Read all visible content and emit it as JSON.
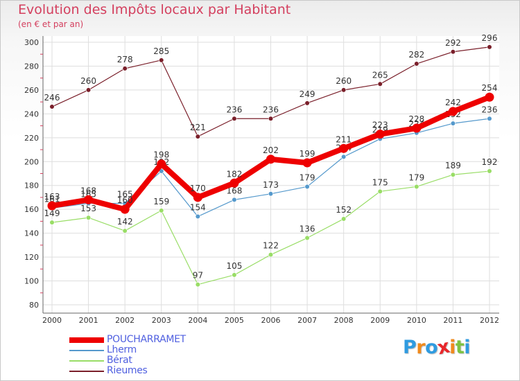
{
  "chart_data": {
    "type": "line",
    "title": "Evolution des Impôts locaux par Habitant",
    "subtitle": "(en € et par an)",
    "categories": [
      "2000",
      "2001",
      "2002",
      "2003",
      "2004",
      "2005",
      "2006",
      "2007",
      "2008",
      "2009",
      "2010",
      "2011",
      "2012"
    ],
    "ylim": [
      80,
      300
    ],
    "yticks": [
      80,
      100,
      120,
      140,
      160,
      180,
      200,
      220,
      240,
      260,
      280,
      300
    ],
    "grid": true,
    "series": [
      {
        "name": "Rieumes",
        "color": "#7a1f2a",
        "values": [
          246,
          260,
          278,
          285,
          221,
          236,
          236,
          249,
          260,
          265,
          282,
          292,
          296
        ]
      },
      {
        "name": "Bérat",
        "color": "#99dd66",
        "values": [
          149,
          153,
          142,
          159,
          97,
          105,
          122,
          136,
          152,
          175,
          179,
          189,
          192
        ]
      },
      {
        "name": "Lherm",
        "color": "#5599cc",
        "values": [
          161,
          165,
          165,
          192,
          154,
          168,
          173,
          179,
          204,
          219,
          224,
          232,
          236
        ]
      },
      {
        "name": "POUCHARRAMET",
        "color": "#ee0000",
        "values": [
          163,
          168,
          160,
          198,
          170,
          182,
          202,
          199,
          211,
          223,
          228,
          242,
          254
        ]
      }
    ],
    "legend_order": [
      "POUCHARRAMET",
      "Lherm",
      "Bérat",
      "Rieumes"
    ]
  },
  "logo": {
    "letters": [
      "P",
      "r",
      "o",
      "x",
      "i",
      "t",
      "i"
    ],
    "colors": [
      "#2f9be0",
      "#f08a1c",
      "#2f9be0",
      "#e8262a",
      "#f08a1c",
      "#7cc242",
      "#2f9be0"
    ]
  }
}
